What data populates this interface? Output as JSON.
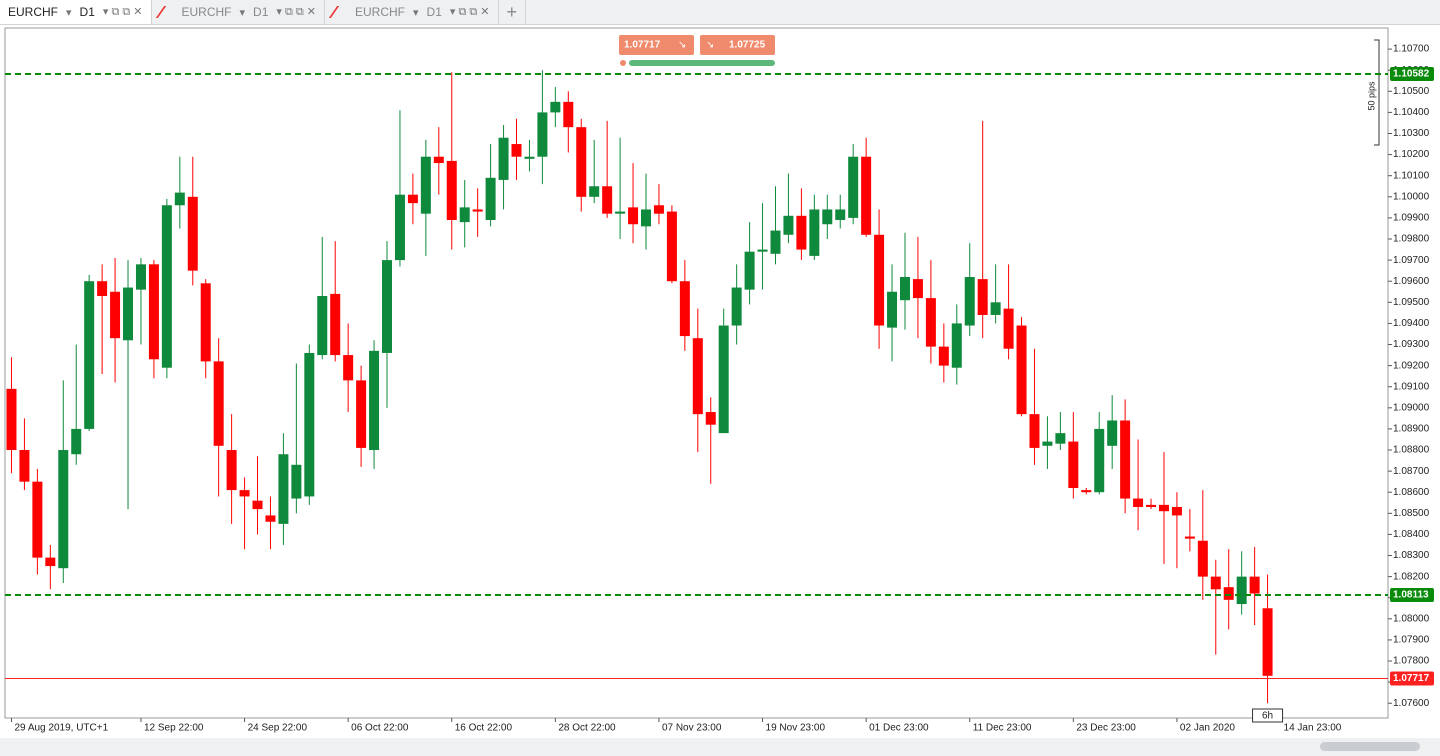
{
  "tabs": [
    {
      "symbol": "EURCHF",
      "timeframe": "D1"
    },
    {
      "symbol": "EURCHF",
      "timeframe": "D1"
    },
    {
      "symbol": "EURCHF",
      "timeframe": "D1"
    }
  ],
  "chart_data": {
    "type": "candlestick",
    "open": [
      1.0909,
      1.088,
      1.0865,
      1.0829,
      1.0824,
      1.0878,
      1.089,
      1.096,
      1.0955,
      1.0932,
      1.0956,
      1.0968,
      1.0919,
      1.0996,
      1.1,
      1.0959,
      1.0922,
      1.088,
      1.0861,
      1.0856,
      1.0849,
      1.0845,
      1.0857,
      1.0858,
      1.0925,
      1.0954,
      1.0925,
      1.0913,
      1.088,
      1.0926,
      1.097,
      1.1001,
      1.0992,
      1.1019,
      1.1017,
      1.0988,
      1.0994,
      1.0989,
      1.1008,
      1.1025,
      1.1018,
      1.1019,
      1.104,
      1.1045,
      1.1033,
      1.1,
      1.1005,
      1.0992,
      1.0995,
      1.0986,
      1.0996,
      1.0993,
      1.096,
      1.0933,
      1.0898,
      1.0888,
      1.0939,
      1.0956,
      1.0974,
      1.0973,
      1.0982,
      1.0991,
      1.0972,
      1.0987,
      1.0989,
      1.099,
      1.1019,
      1.0982,
      1.0938,
      1.0951,
      1.0961,
      1.0952,
      1.0929,
      1.0919,
      1.0939,
      1.0961,
      1.0944,
      1.0947,
      1.0939,
      1.0897,
      1.0882,
      1.0883,
      1.0884,
      1.0861,
      1.086,
      1.0882,
      1.0894,
      1.0857,
      1.0854,
      1.0854,
      1.0853,
      1.0839,
      1.0837,
      1.082,
      1.0815,
      1.0807,
      1.082,
      1.0805
    ],
    "high": [
      1.0924,
      1.0895,
      1.0871,
      1.0835,
      1.0913,
      1.093,
      1.0963,
      1.0968,
      1.0971,
      1.097,
      1.0971,
      1.097,
      1.0999,
      1.1019,
      1.1019,
      1.0961,
      1.0933,
      1.0897,
      1.0867,
      1.0877,
      1.0858,
      1.0888,
      1.0921,
      1.093,
      1.0981,
      1.0979,
      1.094,
      1.092,
      1.0932,
      1.0979,
      1.1041,
      1.1011,
      1.1027,
      1.1033,
      1.1059,
      1.1008,
      1.1004,
      1.1025,
      1.1034,
      1.1037,
      1.1027,
      1.106,
      1.1052,
      1.105,
      1.1037,
      1.1027,
      1.1036,
      1.1028,
      1.1016,
      1.1011,
      1.1006,
      1.0996,
      1.097,
      1.0947,
      1.0905,
      1.0947,
      1.0968,
      1.0988,
      1.0997,
      1.1005,
      1.1011,
      1.1004,
      1.1001,
      1.1001,
      1.1001,
      1.1025,
      1.1028,
      1.0994,
      1.0968,
      1.0983,
      1.0981,
      1.097,
      1.094,
      1.0949,
      1.0978,
      1.1036,
      1.0968,
      1.0968,
      1.0943,
      1.0928,
      1.0896,
      1.0898,
      1.0898,
      1.0862,
      1.0898,
      1.0906,
      1.0904,
      1.0885,
      1.0857,
      1.0879,
      1.086,
      1.0852,
      1.0861,
      1.0828,
      1.0833,
      1.0832,
      1.0834,
      1.0821
    ],
    "low": [
      1.0869,
      1.0861,
      1.0821,
      1.0814,
      1.0817,
      1.0873,
      1.0889,
      1.0916,
      1.0912,
      1.0852,
      1.093,
      1.0914,
      1.0914,
      1.0985,
      1.0958,
      1.0914,
      1.0858,
      1.0845,
      1.0833,
      1.084,
      1.0833,
      1.0835,
      1.085,
      1.0854,
      1.0923,
      1.0922,
      1.0898,
      1.0872,
      1.0871,
      1.09,
      1.0967,
      1.0987,
      1.0972,
      1.1001,
      1.0975,
      1.0976,
      1.0981,
      1.0986,
      1.0994,
      1.1008,
      1.1012,
      1.1006,
      1.1033,
      1.1021,
      1.0993,
      1.0997,
      1.099,
      1.098,
      1.0978,
      1.0975,
      1.0987,
      1.0959,
      1.0927,
      1.0879,
      1.0864,
      1.0888,
      1.093,
      1.0949,
      1.0956,
      1.0968,
      1.0978,
      1.097,
      1.097,
      1.098,
      1.0985,
      1.0987,
      1.0981,
      1.0928,
      1.0922,
      1.0937,
      1.0933,
      1.0921,
      1.0912,
      1.0911,
      1.0934,
      1.0933,
      1.094,
      1.0923,
      1.0896,
      1.0873,
      1.0871,
      1.088,
      1.0857,
      1.0859,
      1.0859,
      1.0871,
      1.085,
      1.0842,
      1.0852,
      1.0826,
      1.0824,
      1.0832,
      1.0809,
      1.0783,
      1.0795,
      1.0802,
      1.0797,
      1.076
    ],
    "close": [
      1.088,
      1.0865,
      1.0829,
      1.0825,
      1.088,
      1.089,
      1.096,
      1.0953,
      1.0933,
      1.0957,
      1.0968,
      1.0923,
      1.0996,
      1.1002,
      1.0965,
      1.0922,
      1.0882,
      1.0861,
      1.0858,
      1.0852,
      1.0846,
      1.0878,
      1.0873,
      1.0926,
      1.0953,
      1.0925,
      1.0913,
      1.0881,
      1.0927,
      1.097,
      1.1001,
      1.0997,
      1.1019,
      1.1016,
      1.0989,
      1.0995,
      1.0993,
      1.1009,
      1.1028,
      1.1019,
      1.1019,
      1.104,
      1.1045,
      1.1033,
      1.1,
      1.1005,
      1.0992,
      1.0993,
      1.0987,
      1.0994,
      1.0992,
      1.096,
      1.0934,
      1.0897,
      1.0892,
      1.0939,
      1.0957,
      1.0974,
      1.0975,
      1.0984,
      1.0991,
      1.0975,
      1.0994,
      1.0994,
      1.0994,
      1.1019,
      1.0982,
      1.0939,
      1.0955,
      1.0962,
      1.0952,
      1.0929,
      1.092,
      1.094,
      1.0962,
      1.0944,
      1.095,
      1.0928,
      1.0897,
      1.0881,
      1.0884,
      1.0888,
      1.0862,
      1.086,
      1.089,
      1.0894,
      1.0857,
      1.0853,
      1.0853,
      1.0851,
      1.0849,
      1.0838,
      1.082,
      1.0814,
      1.0809,
      1.082,
      1.0812,
      1.0773
    ],
    "up_color": "#0f8a3c",
    "down_color": "#ff0000",
    "xlim": [
      -0.5,
      106.3
    ],
    "xticks": [
      {
        "value": 0,
        "label": "29 Aug 2019, UTC+1"
      },
      {
        "value": 10,
        "label": "12 Sep 22:00"
      },
      {
        "value": 18,
        "label": "24 Sep 22:00"
      },
      {
        "value": 26,
        "label": "06 Oct 22:00"
      },
      {
        "value": 34,
        "label": "16 Oct 22:00"
      },
      {
        "value": 42,
        "label": "28 Oct 22:00"
      },
      {
        "value": 50,
        "label": "07 Nov 23:00"
      },
      {
        "value": 58,
        "label": "19 Nov 23:00"
      },
      {
        "value": 66,
        "label": "01 Dec 23:00"
      },
      {
        "value": 74,
        "label": "11 Dec 23:00"
      },
      {
        "value": 82,
        "label": "23 Dec 23:00"
      },
      {
        "value": 90,
        "label": "02 Jan 2020"
      },
      {
        "value": 98,
        "label": "14 Jan 23:00"
      }
    ],
    "ylim": [
      1.0753,
      1.108
    ],
    "yticks": [
      {
        "value": 1.076,
        "label": "1.07600"
      },
      {
        "value": 1.077,
        "label": "1.07700"
      },
      {
        "value": 1.078,
        "label": "1.07800"
      },
      {
        "value": 1.079,
        "label": "1.07900"
      },
      {
        "value": 1.08,
        "label": "1.08000"
      },
      {
        "value": 1.081,
        "label": "1.08100"
      },
      {
        "value": 1.082,
        "label": "1.08200"
      },
      {
        "value": 1.083,
        "label": "1.08300"
      },
      {
        "value": 1.084,
        "label": "1.08400"
      },
      {
        "value": 1.085,
        "label": "1.08500"
      },
      {
        "value": 1.086,
        "label": "1.08600"
      },
      {
        "value": 1.087,
        "label": "1.08700"
      },
      {
        "value": 1.088,
        "label": "1.08800"
      },
      {
        "value": 1.089,
        "label": "1.08900"
      },
      {
        "value": 1.09,
        "label": "1.09000"
      },
      {
        "value": 1.091,
        "label": "1.09100"
      },
      {
        "value": 1.092,
        "label": "1.09200"
      },
      {
        "value": 1.093,
        "label": "1.09300"
      },
      {
        "value": 1.094,
        "label": "1.09400"
      },
      {
        "value": 1.095,
        "label": "1.09500"
      },
      {
        "value": 1.096,
        "label": "1.09600"
      },
      {
        "value": 1.097,
        "label": "1.09700"
      },
      {
        "value": 1.098,
        "label": "1.09800"
      },
      {
        "value": 1.099,
        "label": "1.09900"
      },
      {
        "value": 1.1,
        "label": "1.10000"
      },
      {
        "value": 1.101,
        "label": "1.10100"
      },
      {
        "value": 1.102,
        "label": "1.10200"
      },
      {
        "value": 1.103,
        "label": "1.10300"
      },
      {
        "value": 1.104,
        "label": "1.10400"
      },
      {
        "value": 1.105,
        "label": "1.10500"
      },
      {
        "value": 1.106,
        "label": "1.10600"
      },
      {
        "value": 1.107,
        "label": "1.10700"
      }
    ],
    "levels": [
      {
        "value": 1.10582,
        "color": "#0a8a0a",
        "style": "dashed"
      },
      {
        "value": 1.08113,
        "color": "#0a8a0a",
        "style": "dashed"
      },
      {
        "value": 1.07717,
        "color": "#ff2020",
        "style": "solid"
      }
    ],
    "sell_price": 1.07717,
    "buy_price": 1.07725,
    "range_annotation": "50 pips",
    "time_left": "6h"
  }
}
